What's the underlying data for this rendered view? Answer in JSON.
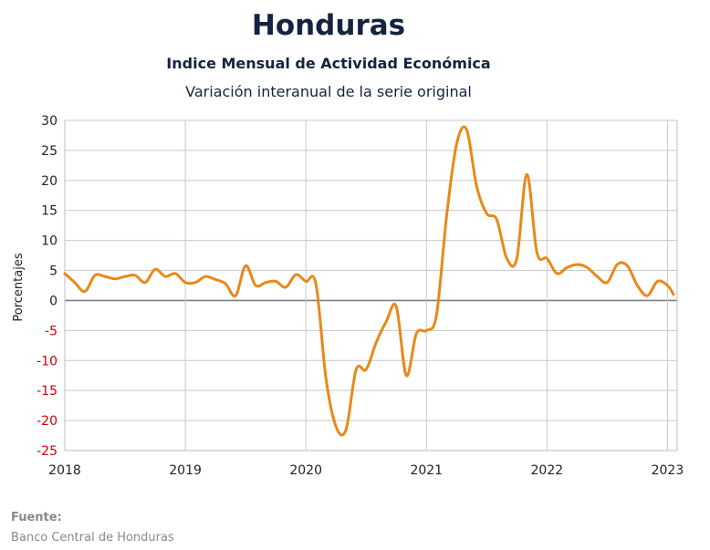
{
  "chart_data": {
    "type": "line",
    "title": "Honduras",
    "subtitle": "Indice Mensual de  Actividad Económica",
    "subtitle2": "Variación interanual de la serie original",
    "ylabel": "Porcentajes",
    "xlabel": "",
    "ylim": [
      -25,
      30
    ],
    "yticks": [
      30,
      25,
      20,
      15,
      10,
      5,
      0,
      -5,
      -10,
      -15,
      -20,
      -25
    ],
    "xlim": [
      2018,
      2023.08
    ],
    "xticks": [
      2018,
      2019,
      2020,
      2021,
      2022,
      2023
    ],
    "negative_tick_color": "#cc0000",
    "grid": true,
    "series": [
      {
        "color": "#e8891a",
        "x": [
          2018.0,
          2018.083,
          2018.167,
          2018.25,
          2018.333,
          2018.417,
          2018.5,
          2018.583,
          2018.667,
          2018.75,
          2018.833,
          2018.917,
          2019.0,
          2019.083,
          2019.167,
          2019.25,
          2019.333,
          2019.417,
          2019.5,
          2019.583,
          2019.667,
          2019.75,
          2019.833,
          2019.917,
          2020.0,
          2020.083,
          2020.167,
          2020.25,
          2020.333,
          2020.417,
          2020.5,
          2020.583,
          2020.667,
          2020.75,
          2020.833,
          2020.917,
          2021.0,
          2021.083,
          2021.167,
          2021.25,
          2021.333,
          2021.417,
          2021.5,
          2021.583,
          2021.667,
          2021.75,
          2021.833,
          2021.917,
          2022.0,
          2022.083,
          2022.167,
          2022.25,
          2022.333,
          2022.417,
          2022.5,
          2022.583,
          2022.667,
          2022.75,
          2022.833,
          2022.917,
          2023.0,
          2023.05
        ],
        "y": [
          4.5,
          3.0,
          1.5,
          4.2,
          4.0,
          3.6,
          4.0,
          4.2,
          3.0,
          5.2,
          4.0,
          4.5,
          3.0,
          3.0,
          4.0,
          3.5,
          2.8,
          0.8,
          5.8,
          2.5,
          3.0,
          3.2,
          2.2,
          4.3,
          3.2,
          2.8,
          -13.0,
          -21.0,
          -21.5,
          -11.5,
          -11.5,
          -7.0,
          -3.5,
          -1.0,
          -12.5,
          -5.5,
          -5.0,
          -2.5,
          14.0,
          26.0,
          28.5,
          19.0,
          14.5,
          13.5,
          7.0,
          7.0,
          21.0,
          8.0,
          7.0,
          4.5,
          5.5,
          6.0,
          5.5,
          4.0,
          3.0,
          6.0,
          5.8,
          2.5,
          0.8,
          3.2,
          2.5,
          1.0
        ]
      }
    ]
  },
  "source": {
    "label": "Fuente:",
    "text": "Banco Central de Honduras"
  },
  "colors": {
    "title": "#15233f",
    "grid": "#c9c9c9",
    "zero_line": "#7f7f7f",
    "axis_text": "#222222"
  }
}
